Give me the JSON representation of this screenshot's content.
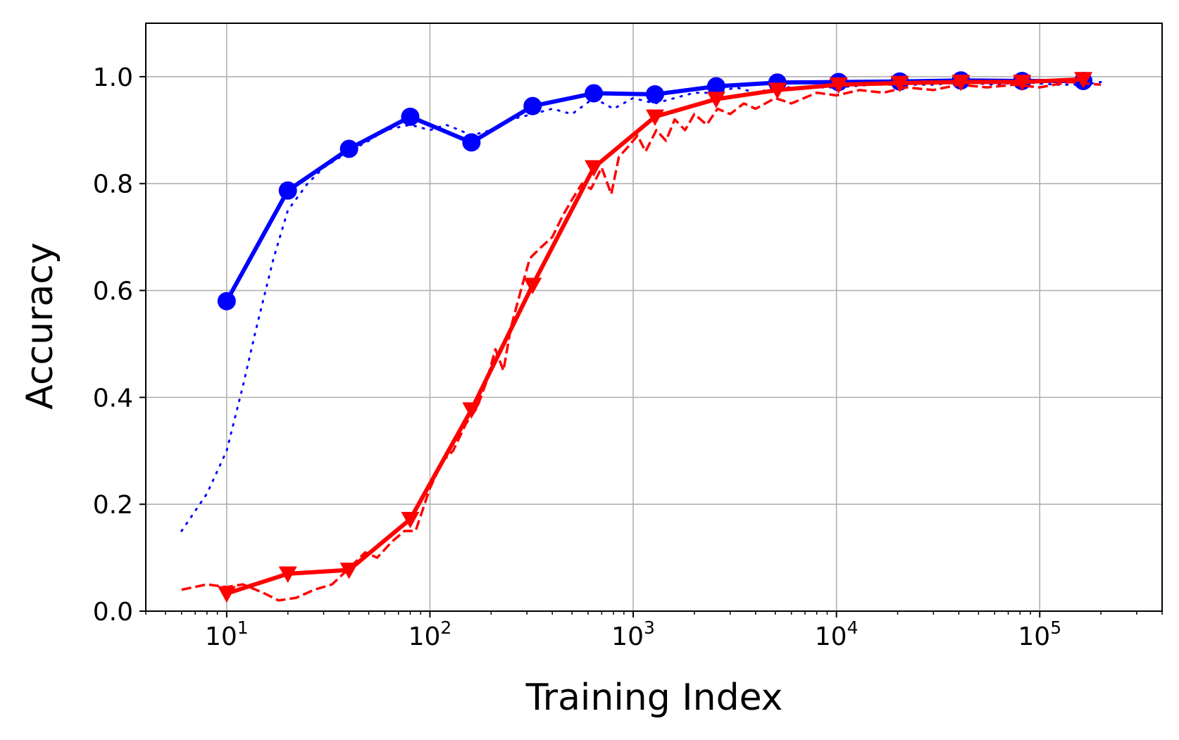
{
  "chart_data": {
    "type": "line",
    "title": "",
    "xlabel": "Training Index",
    "ylabel": "Accuracy",
    "xscale": "log",
    "xlim": [
      4,
      400000
    ],
    "ylim": [
      0,
      1.1
    ],
    "grid": true,
    "legend": "none",
    "x_ticks": [
      {
        "value": 10,
        "base": "10",
        "exp": "1"
      },
      {
        "value": 100,
        "base": "10",
        "exp": "2"
      },
      {
        "value": 1000,
        "base": "10",
        "exp": "3"
      },
      {
        "value": 10000,
        "base": "10",
        "exp": "4"
      },
      {
        "value": 100000,
        "base": "10",
        "exp": "5"
      }
    ],
    "y_ticks": [
      {
        "value": 0.0,
        "label": "0.0"
      },
      {
        "value": 0.2,
        "label": "0.2"
      },
      {
        "value": 0.4,
        "label": "0.4"
      },
      {
        "value": 0.6,
        "label": "0.6"
      },
      {
        "value": 0.8,
        "label": "0.8"
      },
      {
        "value": 1.0,
        "label": "1.0"
      }
    ],
    "series": [
      {
        "color": "#0000ff",
        "style": "solid",
        "marker": "circle",
        "x": [
          10,
          20,
          40,
          80,
          160,
          320,
          640,
          1280,
          2560,
          5120,
          10240,
          20480,
          40960,
          81920,
          163840
        ],
        "y": [
          0.58,
          0.787,
          0.865,
          0.925,
          0.877,
          0.945,
          0.969,
          0.967,
          0.982,
          0.989,
          0.99,
          0.991,
          0.993,
          0.992,
          0.992
        ]
      },
      {
        "color": "#0000ff",
        "style": "dotted",
        "marker": "none",
        "x": [
          6,
          8,
          10,
          12,
          14,
          17,
          20,
          25,
          30,
          40,
          50,
          60,
          80,
          100,
          120,
          140,
          160,
          200,
          250,
          320,
          400,
          500,
          640,
          800,
          1000,
          1280,
          1600,
          2000,
          2560,
          3200,
          4000,
          5120,
          7000,
          10000,
          15000,
          20480,
          30000,
          40960,
          60000,
          81920,
          120000,
          163840,
          200000
        ],
        "y": [
          0.15,
          0.22,
          0.3,
          0.42,
          0.53,
          0.66,
          0.75,
          0.8,
          0.83,
          0.86,
          0.88,
          0.9,
          0.91,
          0.9,
          0.91,
          0.9,
          0.89,
          0.9,
          0.92,
          0.93,
          0.94,
          0.93,
          0.96,
          0.94,
          0.96,
          0.95,
          0.96,
          0.97,
          0.97,
          0.98,
          0.97,
          0.98,
          0.98,
          0.98,
          0.985,
          0.985,
          0.985,
          0.99,
          0.985,
          0.99,
          0.985,
          0.985,
          0.99
        ]
      },
      {
        "color": "#ff0000",
        "style": "solid",
        "marker": "triangle-down",
        "x": [
          10,
          20,
          40,
          80,
          160,
          320,
          640,
          1280,
          2560,
          5120,
          10240,
          20480,
          40960,
          81920,
          163840
        ],
        "y": [
          0.033,
          0.07,
          0.077,
          0.172,
          0.377,
          0.61,
          0.83,
          0.925,
          0.958,
          0.975,
          0.985,
          0.988,
          0.99,
          0.99,
          0.995
        ]
      },
      {
        "color": "#ff0000",
        "style": "dashed",
        "marker": "none",
        "x": [
          6,
          8,
          10,
          12,
          15,
          18,
          22,
          27,
          33,
          40,
          48,
          55,
          65,
          75,
          85,
          100,
          115,
          130,
          150,
          170,
          190,
          210,
          230,
          250,
          280,
          310,
          350,
          400,
          450,
          500,
          560,
          620,
          700,
          780,
          850,
          950,
          1050,
          1150,
          1300,
          1450,
          1600,
          1800,
          2000,
          2300,
          2600,
          3000,
          3500,
          4000,
          5000,
          6000,
          8000,
          10000,
          13000,
          17000,
          22000,
          30000,
          40000,
          55000,
          75000,
          100000,
          140000,
          200000
        ],
        "y": [
          0.04,
          0.05,
          0.045,
          0.05,
          0.035,
          0.02,
          0.025,
          0.04,
          0.05,
          0.08,
          0.11,
          0.1,
          0.13,
          0.15,
          0.15,
          0.23,
          0.28,
          0.3,
          0.35,
          0.38,
          0.43,
          0.49,
          0.45,
          0.53,
          0.6,
          0.66,
          0.68,
          0.7,
          0.74,
          0.77,
          0.8,
          0.79,
          0.83,
          0.78,
          0.85,
          0.87,
          0.89,
          0.86,
          0.9,
          0.88,
          0.92,
          0.9,
          0.93,
          0.91,
          0.94,
          0.93,
          0.95,
          0.94,
          0.96,
          0.95,
          0.97,
          0.965,
          0.975,
          0.97,
          0.98,
          0.975,
          0.985,
          0.98,
          0.985,
          0.98,
          0.99,
          0.985
        ]
      }
    ]
  }
}
